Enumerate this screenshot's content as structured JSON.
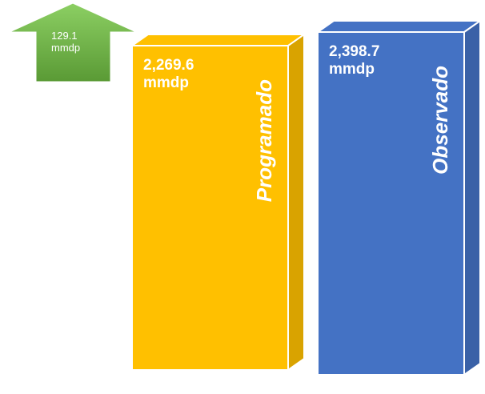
{
  "chart_data": {
    "type": "bar",
    "categories": [
      "Programado",
      "Observado"
    ],
    "values": [
      2269.6,
      2398.7
    ],
    "value_labels": [
      "2,269.6 mmdp",
      "2,398.7 mmdp"
    ],
    "colors": [
      "#FFC000",
      "#4472C4"
    ],
    "annotation": "129.1 mmdp",
    "annotation_color": "#70AD47"
  }
}
